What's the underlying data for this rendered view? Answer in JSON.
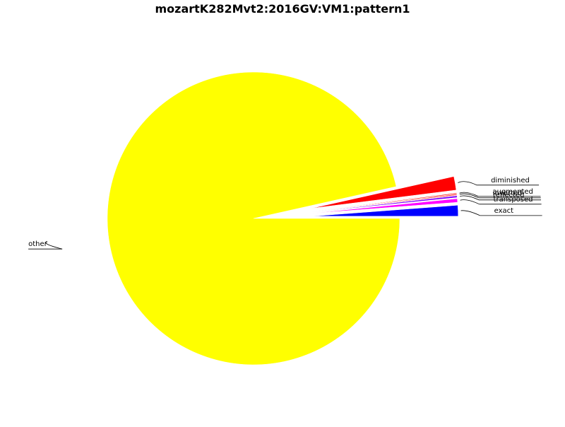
{
  "chart_data": {
    "type": "pie",
    "title": "mozartK282Mvt2:2016GV:VM1:pattern1",
    "slices": [
      {
        "label": "exact",
        "value": 1.2,
        "color": "#0000ff",
        "exploded": true
      },
      {
        "label": "transposed",
        "value": 0.4,
        "color": "#ff00ff",
        "exploded": true
      },
      {
        "label": "reflected",
        "value": 0.2,
        "color": "#8000ff",
        "exploded": true
      },
      {
        "label": "inverted",
        "value": 0.1,
        "color": "#ff0000",
        "exploded": true
      },
      {
        "label": "augmented",
        "value": 0.1,
        "color": "#ff0000",
        "exploded": true
      },
      {
        "label": "diminished",
        "value": 1.5,
        "color": "#ff0000",
        "exploded": true
      },
      {
        "label": "other",
        "value": 96.5,
        "color": "#ffff00",
        "exploded": false
      }
    ],
    "grid": false,
    "legend": "none"
  }
}
